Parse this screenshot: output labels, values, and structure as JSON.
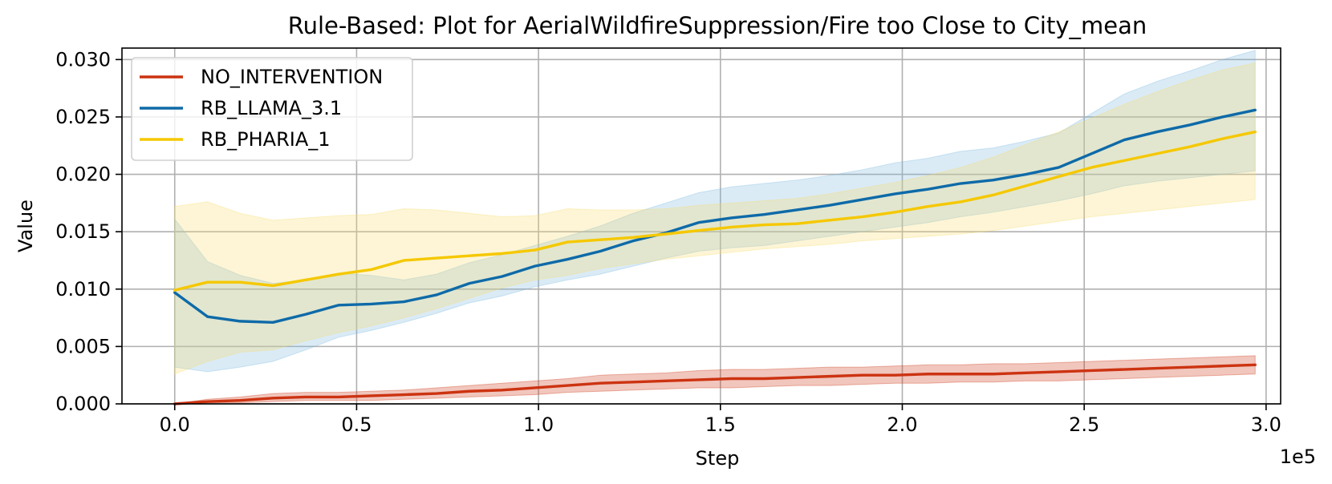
{
  "chart_data": {
    "type": "line",
    "title": "Rule-Based: Plot for AerialWildfireSuppression/Fire too Close to City_mean",
    "xlabel": "Step",
    "ylabel": "Value",
    "x_offset_label": "1e5",
    "xlim": [
      -0.145,
      3.04
    ],
    "ylim": [
      0.0,
      0.031
    ],
    "grid": true,
    "legend_position": "top-left",
    "x_ticks": [
      0.0,
      0.5,
      1.0,
      1.5,
      2.0,
      2.5,
      3.0
    ],
    "x_tick_labels": [
      "0.0",
      "0.5",
      "1.0",
      "1.5",
      "2.0",
      "2.5",
      "3.0"
    ],
    "y_ticks": [
      0.0,
      0.005,
      0.01,
      0.015,
      0.02,
      0.025,
      0.03
    ],
    "y_tick_labels": [
      "0.000",
      "0.005",
      "0.010",
      "0.015",
      "0.020",
      "0.025",
      "0.030"
    ],
    "x": [
      0.0,
      0.09,
      0.18,
      0.27,
      0.36,
      0.45,
      0.54,
      0.63,
      0.72,
      0.81,
      0.9,
      0.99,
      1.08,
      1.17,
      1.26,
      1.35,
      1.44,
      1.53,
      1.62,
      1.71,
      1.8,
      1.89,
      1.98,
      2.07,
      2.16,
      2.25,
      2.34,
      2.43,
      2.52,
      2.61,
      2.7,
      2.79,
      2.88,
      2.97
    ],
    "series": [
      {
        "name": "NO_INTERVENTION",
        "color": "#cc3311",
        "values": [
          0.0,
          0.0002,
          0.0003,
          0.0005,
          0.0006,
          0.0006,
          0.0007,
          0.0008,
          0.0009,
          0.0011,
          0.0012,
          0.0014,
          0.0016,
          0.0018,
          0.0019,
          0.002,
          0.0021,
          0.0022,
          0.0022,
          0.0023,
          0.0024,
          0.0025,
          0.0025,
          0.0026,
          0.0026,
          0.0026,
          0.0027,
          0.0028,
          0.0029,
          0.003,
          0.0031,
          0.0032,
          0.0033,
          0.0034
        ],
        "lower": [
          0.0,
          0.0001,
          0.0001,
          0.0002,
          0.0003,
          0.0003,
          0.0003,
          0.0004,
          0.0005,
          0.0006,
          0.0007,
          0.0008,
          0.001,
          0.0011,
          0.0012,
          0.0013,
          0.0014,
          0.0014,
          0.0015,
          0.0016,
          0.0016,
          0.0017,
          0.0018,
          0.0018,
          0.0019,
          0.0019,
          0.002,
          0.002,
          0.0021,
          0.0022,
          0.0023,
          0.0024,
          0.0025,
          0.0026
        ],
        "upper": [
          0.0,
          0.0004,
          0.0006,
          0.0009,
          0.001,
          0.001,
          0.0011,
          0.0012,
          0.0014,
          0.0016,
          0.0018,
          0.002,
          0.0022,
          0.0025,
          0.0026,
          0.0027,
          0.0029,
          0.003,
          0.003,
          0.0031,
          0.0032,
          0.0032,
          0.0033,
          0.0034,
          0.0034,
          0.0035,
          0.0035,
          0.0036,
          0.0037,
          0.0038,
          0.0039,
          0.004,
          0.0041,
          0.0042
        ]
      },
      {
        "name": "RB_LLAMA_3.1",
        "color": "#0e6aa8",
        "band_color": "#7ab8de",
        "values": [
          0.0097,
          0.0076,
          0.0072,
          0.0071,
          0.0078,
          0.0086,
          0.0087,
          0.0089,
          0.0095,
          0.0105,
          0.0111,
          0.012,
          0.0126,
          0.0133,
          0.0142,
          0.0149,
          0.0158,
          0.0162,
          0.0165,
          0.0169,
          0.0173,
          0.0178,
          0.0183,
          0.0187,
          0.0192,
          0.0195,
          0.02,
          0.0206,
          0.0218,
          0.023,
          0.0237,
          0.0243,
          0.025,
          0.0256
        ],
        "lower": [
          0.0032,
          0.0028,
          0.0032,
          0.0037,
          0.0047,
          0.0058,
          0.0064,
          0.0071,
          0.0079,
          0.0088,
          0.0094,
          0.0102,
          0.0108,
          0.0113,
          0.012,
          0.0127,
          0.0133,
          0.0136,
          0.0138,
          0.0142,
          0.0146,
          0.015,
          0.0154,
          0.0158,
          0.0163,
          0.0167,
          0.0172,
          0.0177,
          0.0183,
          0.019,
          0.0194,
          0.0197,
          0.02,
          0.0203
        ],
        "upper": [
          0.0161,
          0.0124,
          0.0112,
          0.0105,
          0.0108,
          0.0114,
          0.0112,
          0.0108,
          0.0113,
          0.0123,
          0.013,
          0.0138,
          0.0146,
          0.0155,
          0.0166,
          0.0175,
          0.0184,
          0.0189,
          0.0192,
          0.0195,
          0.0199,
          0.0204,
          0.021,
          0.0214,
          0.022,
          0.0223,
          0.0229,
          0.0236,
          0.0253,
          0.027,
          0.0281,
          0.029,
          0.03,
          0.0308
        ]
      },
      {
        "name": "RB_PHARIA_1",
        "color": "#f5c800",
        "band_color": "#f9dc6a",
        "values": [
          0.0099,
          0.0106,
          0.0106,
          0.0103,
          0.0108,
          0.0113,
          0.0117,
          0.0125,
          0.0127,
          0.0129,
          0.0131,
          0.0134,
          0.0141,
          0.0143,
          0.0145,
          0.0148,
          0.0151,
          0.0154,
          0.0156,
          0.0157,
          0.016,
          0.0163,
          0.0167,
          0.0172,
          0.0176,
          0.0182,
          0.019,
          0.0198,
          0.0206,
          0.0212,
          0.0218,
          0.0224,
          0.0231,
          0.0237
        ],
        "lower": [
          0.0026,
          0.0037,
          0.0045,
          0.0047,
          0.0055,
          0.0062,
          0.0068,
          0.0075,
          0.0083,
          0.0092,
          0.0101,
          0.0108,
          0.0112,
          0.0118,
          0.0122,
          0.0126,
          0.0129,
          0.0132,
          0.0135,
          0.0137,
          0.0139,
          0.0142,
          0.0144,
          0.0146,
          0.0148,
          0.0151,
          0.0155,
          0.0159,
          0.0163,
          0.0166,
          0.0169,
          0.0172,
          0.0175,
          0.0178
        ],
        "upper": [
          0.0172,
          0.0176,
          0.0166,
          0.016,
          0.0162,
          0.0164,
          0.0165,
          0.017,
          0.0169,
          0.0166,
          0.0163,
          0.0164,
          0.017,
          0.0169,
          0.0169,
          0.017,
          0.0173,
          0.0175,
          0.0177,
          0.0179,
          0.0183,
          0.0188,
          0.0193,
          0.0199,
          0.0206,
          0.0215,
          0.0226,
          0.0237,
          0.0249,
          0.0261,
          0.0272,
          0.0282,
          0.0291,
          0.0297
        ]
      }
    ]
  }
}
